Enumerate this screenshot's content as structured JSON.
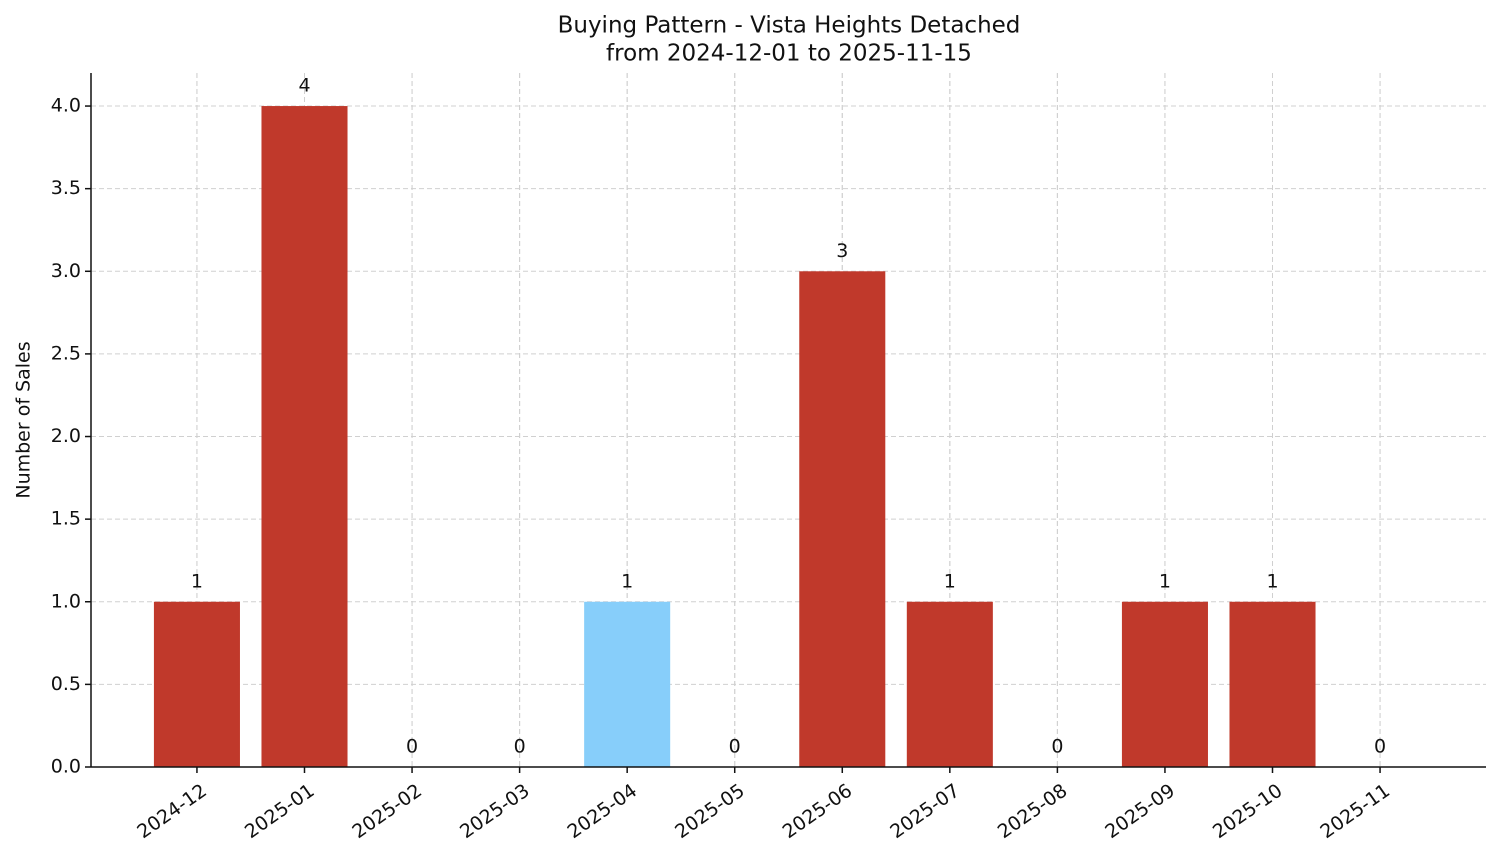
{
  "chart_data": {
    "type": "bar",
    "title": "Buying Pattern - Vista Heights Detached",
    "subtitle": "from 2024-12-01 to 2025-11-15",
    "y_label": "Number of Sales",
    "categories": [
      "2024-12",
      "2025-01",
      "2025-02",
      "2025-03",
      "2025-04",
      "2025-05",
      "2025-06",
      "2025-07",
      "2025-08",
      "2025-09",
      "2025-10",
      "2025-11"
    ],
    "values": [
      1,
      4,
      0,
      0,
      1,
      0,
      3,
      1,
      0,
      1,
      1,
      0
    ],
    "colors": [
      "#c0392b",
      "#c0392b",
      "#c0392b",
      "#c0392b",
      "#87cefa",
      "#c0392b",
      "#c0392b",
      "#c0392b",
      "#c0392b",
      "#c0392b",
      "#c0392b",
      "#c0392b"
    ],
    "ylim": [
      0,
      4.2
    ],
    "yticks": [
      {
        "value": 0,
        "label": "0.0"
      },
      0.5,
      {
        "value": 1,
        "label": "1.0"
      },
      1.5,
      {
        "value": 2,
        "label": "2.0"
      },
      2.5,
      {
        "value": 3,
        "label": "3.0"
      },
      3.5,
      {
        "value": 4,
        "label": "4.0"
      }
    ],
    "grid": true
  }
}
